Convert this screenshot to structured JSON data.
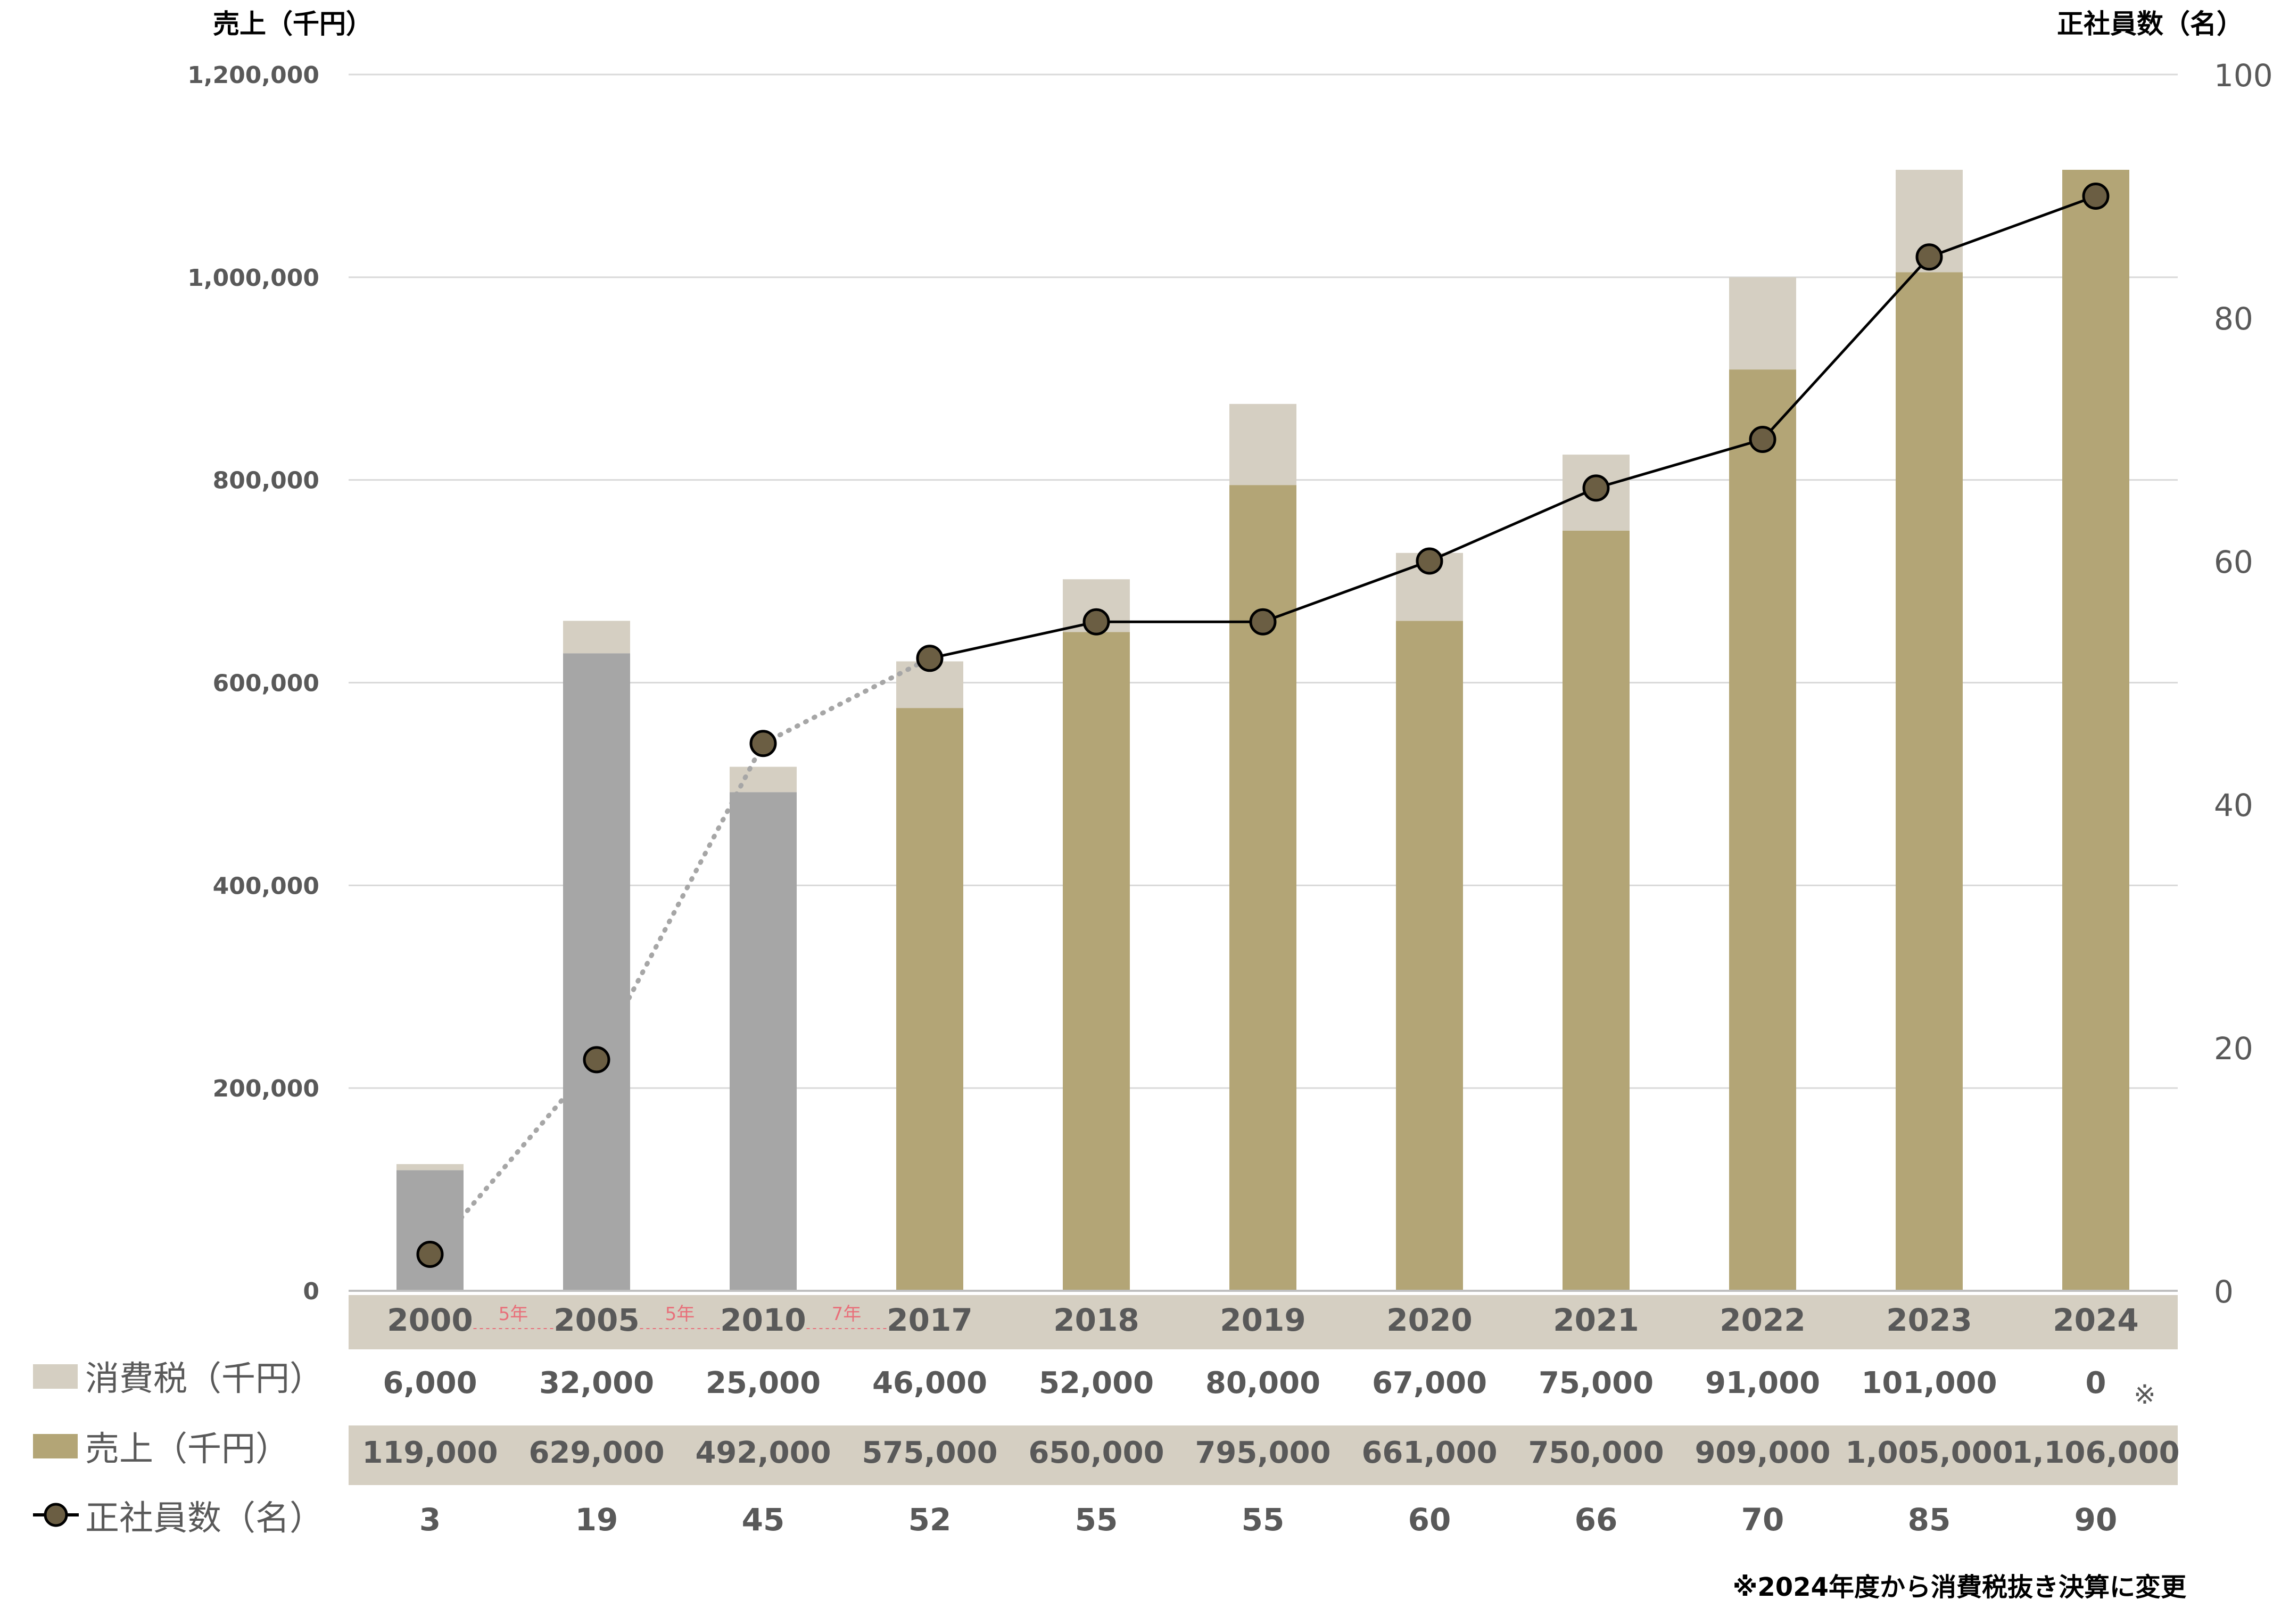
{
  "chart_data": {
    "type": "bar",
    "stacked": true,
    "left_axis_label": "売上（千円）",
    "right_axis_label": "正社員数（名）",
    "left_ylim": [
      0,
      1200000
    ],
    "left_ticks": [
      "0",
      "200,000",
      "400,000",
      "600,000",
      "800,000",
      "1,000,000",
      "1,200,000"
    ],
    "right_ylim": [
      0,
      100
    ],
    "right_ticks": [
      "0",
      "20",
      "40",
      "60",
      "80",
      "100"
    ],
    "categories": [
      "2000",
      "2005",
      "2010",
      "2017",
      "2018",
      "2019",
      "2020",
      "2021",
      "2022",
      "2023",
      "2024"
    ],
    "gaps": [
      {
        "after_index": 0,
        "label": "5年"
      },
      {
        "after_index": 1,
        "label": "5年"
      },
      {
        "after_index": 2,
        "label": "7年"
      }
    ],
    "series": [
      {
        "name": "売上（千円）",
        "values": [
          119000,
          629000,
          492000,
          575000,
          650000,
          795000,
          661000,
          750000,
          909000,
          1005000,
          1106000
        ],
        "labels": [
          "119,000",
          "629,000",
          "492,000",
          "575,000",
          "650,000",
          "795,000",
          "661,000",
          "750,000",
          "909,000",
          "1,005,000",
          "1,106,000"
        ]
      },
      {
        "name": "消費税（千円）",
        "values": [
          6000,
          32000,
          25000,
          46000,
          52000,
          80000,
          67000,
          75000,
          91000,
          101000,
          0
        ],
        "labels": [
          "6,000",
          "32,000",
          "25,000",
          "46,000",
          "52,000",
          "80,000",
          "67,000",
          "75,000",
          "91,000",
          "101,000",
          "0"
        ]
      },
      {
        "name": "正社員数（名）",
        "type": "line",
        "axis": "right",
        "values": [
          3,
          19,
          45,
          52,
          55,
          55,
          60,
          66,
          70,
          85,
          90
        ],
        "labels": [
          "3",
          "19",
          "45",
          "52",
          "55",
          "55",
          "60",
          "66",
          "70",
          "85",
          "90"
        ]
      }
    ],
    "note_mark": "※",
    "footnote": "※2024年度から消費税抜き決算に変更",
    "grid": true,
    "colors": {
      "sales": "#b3a576",
      "sales_early": "#a6a6a6",
      "tax": "#d5cfc2",
      "line": "#000000",
      "marker": "#6b5e43",
      "table_band": "#d5cfc2",
      "gap_label": "#e8707a"
    }
  }
}
